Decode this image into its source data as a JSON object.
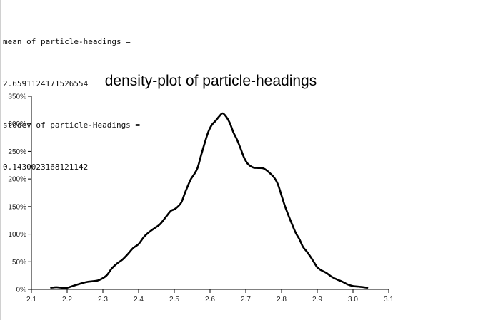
{
  "stats": {
    "mean_label": "mean of particle-headings =",
    "mean_value": "2.6591124171526554",
    "stddev_label": "stddev of particle-Headings =",
    "stddev_value": "0.1430023168121142"
  },
  "chart_data": {
    "type": "line",
    "title": "density-plot of particle-headings",
    "xlabel": "",
    "ylabel": "",
    "xlim": [
      2.1,
      3.1
    ],
    "ylim": [
      0,
      350
    ],
    "x_ticks": [
      2.1,
      2.2,
      2.3,
      2.4,
      2.5,
      2.6,
      2.7,
      2.8,
      2.9,
      3.0,
      3.1
    ],
    "x_tick_labels": [
      "2.1",
      "2.2",
      "2.3",
      "2.4",
      "2.5",
      "2.6",
      "2.7",
      "2.8",
      "2.9",
      "3.0",
      "3.1"
    ],
    "y_ticks": [
      0,
      50,
      100,
      150,
      200,
      250,
      300,
      350
    ],
    "y_tick_labels": [
      "0%",
      "50%",
      "100%",
      "150%",
      "200%",
      "250%",
      "300%",
      "350%"
    ],
    "grid": false,
    "series": [
      {
        "x": [
          2.155,
          2.17,
          2.185,
          2.2,
          2.215,
          2.23,
          2.245,
          2.26,
          2.275,
          2.29,
          2.31,
          2.325,
          2.34,
          2.355,
          2.37,
          2.385,
          2.4,
          2.415,
          2.43,
          2.445,
          2.46,
          2.475,
          2.49,
          2.5,
          2.51,
          2.52,
          2.53,
          2.545,
          2.555,
          2.565,
          2.575,
          2.585,
          2.595,
          2.605,
          2.615,
          2.625,
          2.635,
          2.645,
          2.655,
          2.665,
          2.675,
          2.685,
          2.695,
          2.705,
          2.72,
          2.735,
          2.75,
          2.765,
          2.78,
          2.79,
          2.8,
          2.81,
          2.82,
          2.83,
          2.84,
          2.85,
          2.86,
          2.87,
          2.88,
          2.89,
          2.9,
          2.91,
          2.925,
          2.94,
          2.955,
          2.97,
          2.985,
          3.0,
          3.015,
          3.03,
          3.04
        ],
        "values": [
          3,
          4,
          3,
          3,
          6,
          9,
          12,
          14,
          15,
          17,
          25,
          38,
          47,
          54,
          64,
          75,
          82,
          95,
          104,
          111,
          118,
          130,
          142,
          145,
          150,
          158,
          175,
          198,
          208,
          220,
          243,
          265,
          285,
          298,
          305,
          313,
          319,
          313,
          302,
          285,
          272,
          256,
          239,
          228,
          221,
          220,
          219,
          212,
          202,
          190,
          170,
          150,
          133,
          117,
          102,
          91,
          77,
          69,
          60,
          50,
          40,
          35,
          30,
          23,
          18,
          14,
          9,
          6,
          5,
          4,
          3
        ]
      }
    ]
  }
}
